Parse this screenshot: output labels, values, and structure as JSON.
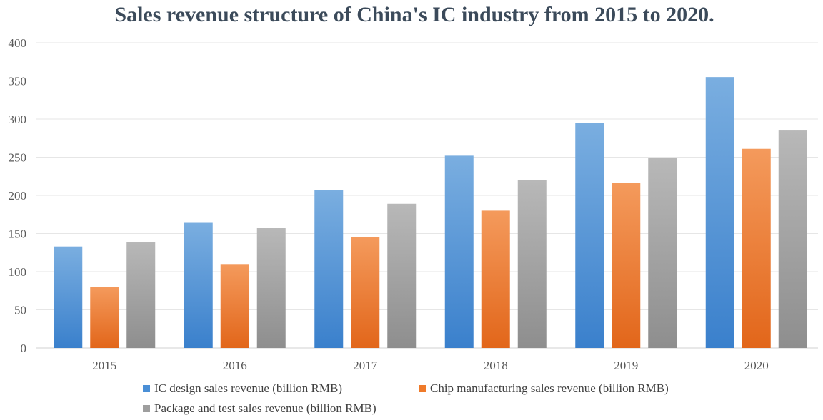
{
  "chart_data": {
    "type": "bar",
    "title": "Sales revenue structure of China's IC industry from 2015 to 2020.",
    "categories": [
      "2015",
      "2016",
      "2017",
      "2018",
      "2019",
      "2020"
    ],
    "series": [
      {
        "name": "IC design sales revenue (billion RMB)",
        "values": [
          133,
          164,
          207,
          252,
          295,
          355
        ],
        "color": "#4a8fd6"
      },
      {
        "name": "Chip manufacturing sales revenue (billion RMB)",
        "values": [
          80,
          110,
          145,
          180,
          216,
          261
        ],
        "color": "#ef7a2a"
      },
      {
        "name": "Package and test sales revenue (billion RMB)",
        "values": [
          139,
          157,
          189,
          220,
          249,
          285
        ],
        "color": "#9e9e9e"
      }
    ],
    "y_ticks": [
      "0",
      "50",
      "100",
      "150",
      "200",
      "250",
      "300",
      "350",
      "400"
    ],
    "ylim": [
      0,
      400
    ],
    "grid": true,
    "legend_position": "bottom"
  }
}
